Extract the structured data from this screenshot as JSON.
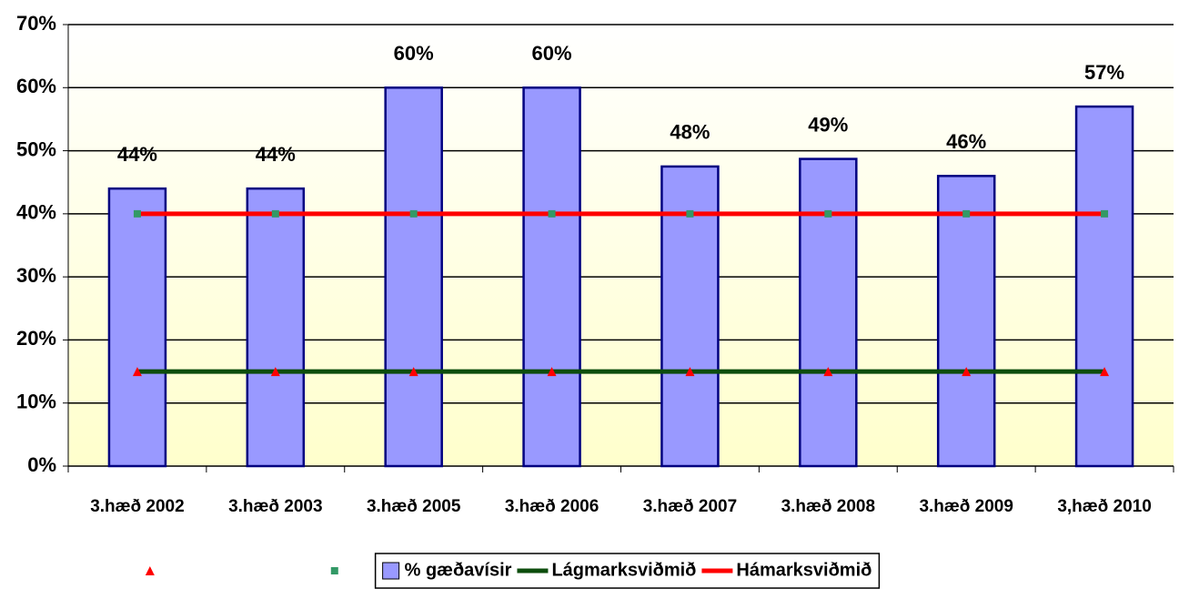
{
  "chart_data": {
    "type": "bar_line",
    "categories": [
      "3.hæð 2002",
      "3.hæð 2003",
      "3.hæð 2005",
      "3.hæð 2006",
      "3.hæð 2007",
      "3.hæð 2008",
      "3.hæð 2009",
      "3,hæð 2010"
    ],
    "series": [
      {
        "name": "% gæðavísir",
        "type": "bar",
        "color": "#9999ff",
        "border_color": "#000080",
        "values": [
          44,
          44,
          60,
          60,
          47.5,
          48.7,
          46,
          57
        ],
        "value_labels": [
          "44%",
          "44%",
          "60%",
          "60%",
          "48%",
          "49%",
          "46%",
          "57%"
        ]
      },
      {
        "name": "Lágmarksviðmið",
        "type": "line",
        "color": "#0d4d0d",
        "marker": "triangle",
        "marker_color": "#ff0000",
        "values": [
          15,
          15,
          15,
          15,
          15,
          15,
          15,
          15
        ]
      },
      {
        "name": "Hámarksviðmið",
        "type": "line",
        "color": "#ff0000",
        "marker": "square",
        "marker_color": "#339966",
        "values": [
          40,
          40,
          40,
          40,
          40,
          40,
          40,
          40
        ]
      }
    ],
    "ylim": [
      0,
      70
    ],
    "yticks": [
      {
        "value": 0,
        "label": "0%"
      },
      {
        "value": 10,
        "label": "10%"
      },
      {
        "value": 20,
        "label": "20%"
      },
      {
        "value": 30,
        "label": "30%"
      },
      {
        "value": 40,
        "label": "40%"
      },
      {
        "value": 50,
        "label": "50%"
      },
      {
        "value": 60,
        "label": "60%"
      },
      {
        "value": 70,
        "label": "70%"
      }
    ],
    "grid": true,
    "legend": "bottom"
  }
}
